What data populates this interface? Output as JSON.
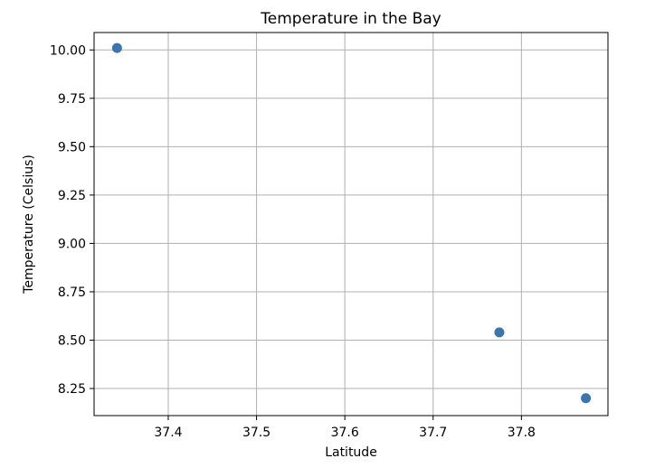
{
  "chart_data": {
    "type": "scatter",
    "title": "Temperature in the Bay",
    "xlabel": "Latitude",
    "ylabel": "Temperature (Celsius)",
    "xlim": [
      37.316,
      37.898
    ],
    "ylim": [
      8.11,
      10.09
    ],
    "xticks": [
      37.4,
      37.5,
      37.6,
      37.7,
      37.8
    ],
    "xtick_labels": [
      "37.4",
      "37.5",
      "37.6",
      "37.7",
      "37.8"
    ],
    "yticks": [
      8.25,
      8.5,
      8.75,
      9.0,
      9.25,
      9.5,
      9.75,
      10.0
    ],
    "ytick_labels": [
      "8.25",
      "8.50",
      "8.75",
      "9.00",
      "9.25",
      "9.50",
      "9.75",
      "10.00"
    ],
    "grid": true,
    "marker_color": "#3a75af",
    "series": [
      {
        "points": [
          {
            "x": 37.342,
            "y": 10.01
          },
          {
            "x": 37.775,
            "y": 8.54
          },
          {
            "x": 37.873,
            "y": 8.2
          }
        ]
      }
    ]
  }
}
